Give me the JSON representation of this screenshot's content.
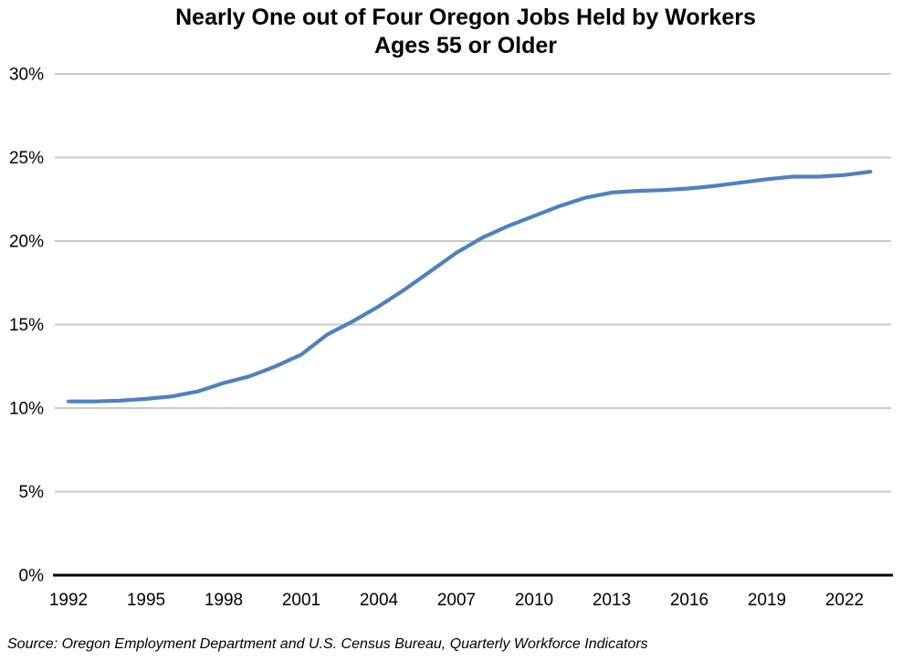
{
  "title": {
    "line1": "Nearly One out of Four Oregon Jobs Held by Workers",
    "line2": "Ages 55 or Older"
  },
  "source_note": "Source: Oregon Employment Department and U.S. Census Bureau, Quarterly Workforce Indicators",
  "chart_data": {
    "type": "line",
    "title": "Nearly One out of Four Oregon Jobs Held by Workers Ages 55 or Older",
    "title_lines": [
      "Nearly One out of Four Oregon Jobs Held by Workers",
      "Ages 55 or Older"
    ],
    "x": [
      1992,
      1993,
      1994,
      1995,
      1996,
      1997,
      1998,
      1999,
      2000,
      2001,
      2002,
      2003,
      2004,
      2005,
      2006,
      2007,
      2008,
      2009,
      2010,
      2011,
      2012,
      2013,
      2014,
      2015,
      2016,
      2017,
      2018,
      2019,
      2020,
      2021,
      2022,
      2023
    ],
    "series": [
      {
        "name": "Share of Oregon jobs held by workers ages 55 or older",
        "values": [
          10.4,
          10.4,
          10.45,
          10.55,
          10.7,
          11.0,
          11.5,
          11.9,
          12.5,
          13.2,
          14.4,
          15.2,
          16.1,
          17.1,
          18.2,
          19.3,
          20.2,
          20.9,
          21.5,
          22.1,
          22.6,
          22.9,
          23.0,
          23.05,
          23.15,
          23.3,
          23.5,
          23.7,
          23.85,
          23.85,
          23.95,
          24.15
        ]
      }
    ],
    "xlabel": "",
    "ylabel": "",
    "ylim": [
      0,
      30
    ],
    "ytick_interval": 5,
    "ytick_labels": [
      "0%",
      "5%",
      "10%",
      "15%",
      "20%",
      "25%",
      "30%"
    ],
    "xtick_labels": [
      "1992",
      "1995",
      "1998",
      "2001",
      "2004",
      "2007",
      "2010",
      "2013",
      "2016",
      "2019",
      "2022"
    ],
    "xtick_step_years": 3,
    "grid": true,
    "legend_position": "none",
    "line_color": "#4f81bd",
    "grid_color": "#c9c9c9",
    "axis_color": "#000000",
    "source": "Source: Oregon Employment Department and U.S. Census Bureau, Quarterly Workforce Indicators"
  }
}
